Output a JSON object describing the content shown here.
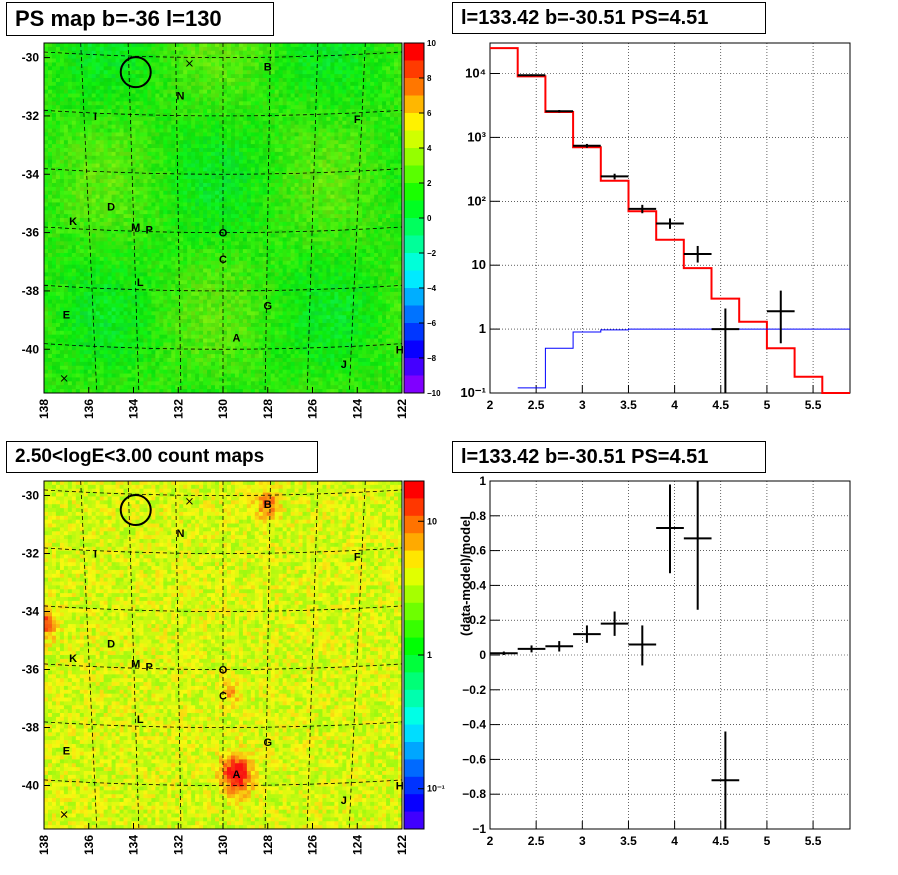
{
  "panels": {
    "map_top": {
      "title": "PS map b=-36 l=130",
      "x_ticks": [
        "138",
        "136",
        "134",
        "132",
        "130",
        "128",
        "126",
        "124",
        "122"
      ],
      "y_ticks": [
        "-30",
        "-32",
        "-34",
        "-36",
        "-38",
        "-40"
      ],
      "colorbar_ticks": [
        "10",
        "8",
        "6",
        "4",
        "2",
        "0",
        "−2",
        "−4",
        "−6",
        "−8",
        "−10"
      ],
      "source_labels": [
        {
          "t": "B",
          "l": 128.0,
          "b": -30.3
        },
        {
          "t": "N",
          "l": 131.9,
          "b": -31.3
        },
        {
          "t": "I",
          "l": 135.7,
          "b": -32.0
        },
        {
          "t": "F",
          "l": 124.0,
          "b": -32.1
        },
        {
          "t": "D",
          "l": 135.0,
          "b": -35.1
        },
        {
          "t": "K",
          "l": 136.7,
          "b": -35.6
        },
        {
          "t": "M",
          "l": 133.9,
          "b": -35.8
        },
        {
          "t": "P",
          "l": 133.3,
          "b": -35.9
        },
        {
          "t": "O",
          "l": 130.0,
          "b": -36.0
        },
        {
          "t": "C",
          "l": 130.0,
          "b": -36.9
        },
        {
          "t": "L",
          "l": 133.7,
          "b": -37.7
        },
        {
          "t": "G",
          "l": 128.0,
          "b": -38.5
        },
        {
          "t": "E",
          "l": 137.0,
          "b": -38.8
        },
        {
          "t": "A",
          "l": 129.4,
          "b": -39.6
        },
        {
          "t": "H",
          "l": 122.1,
          "b": -40.0
        },
        {
          "t": "J",
          "l": 124.6,
          "b": -40.5
        }
      ],
      "crosses": [
        {
          "l": 131.5,
          "b": -30.2
        },
        {
          "l": 137.1,
          "b": -41.0
        }
      ],
      "circle": {
        "l": 133.9,
        "b": -30.5
      }
    },
    "map_bottom": {
      "title": "2.50<logE<3.00 count maps",
      "x_ticks": [
        "138",
        "136",
        "134",
        "132",
        "130",
        "128",
        "126",
        "124",
        "122"
      ],
      "y_ticks": [
        "-30",
        "-32",
        "-34",
        "-36",
        "-38",
        "-40"
      ],
      "colorbar_ticks": [
        {
          "t": "10",
          "v": 10
        },
        {
          "t": "1",
          "v": 1
        },
        {
          "t": "10⁻¹",
          "v": 0.1
        }
      ],
      "hotspots": [
        {
          "l": 129.4,
          "b": -39.6,
          "r": 1.0
        },
        {
          "l": 128.0,
          "b": -30.3,
          "r": 0.55
        },
        {
          "l": 137.9,
          "b": -34.4,
          "r": 0.6
        },
        {
          "l": 129.7,
          "b": -36.8,
          "r": 0.35
        }
      ]
    },
    "spectrum": {
      "title": "l=133.42 b=-30.51 PS=4.51",
      "x_ticks": [
        "2",
        "2.5",
        "3",
        "3.5",
        "4",
        "4.5",
        "5",
        "5.5"
      ],
      "y_ticks": [
        {
          "t": "10⁻¹",
          "v": 0.1
        },
        {
          "t": "1",
          "v": 1
        },
        {
          "t": "10",
          "v": 10
        },
        {
          "t": "10²",
          "v": 100
        },
        {
          "t": "10³",
          "v": 1000
        },
        {
          "t": "10⁴",
          "v": 10000
        }
      ]
    },
    "residual": {
      "title": "l=133.42 b=-30.51 PS=4.51",
      "ylabel": "(data-model)/model",
      "x_ticks": [
        "2",
        "2.5",
        "3",
        "3.5",
        "4",
        "4.5",
        "5",
        "5.5"
      ],
      "y_ticks": [
        "−1",
        "−0.8",
        "−0.6",
        "−0.4",
        "−0.2",
        "0",
        "0.2",
        "0.4",
        "0.6",
        "0.8",
        "1"
      ]
    }
  },
  "chart_data": [
    {
      "type": "heatmap",
      "title": "PS map b=-36 l=130",
      "xlim": [
        138,
        122
      ],
      "ylim": [
        -41.5,
        -29.5
      ],
      "zlim": [
        -10,
        10
      ],
      "colors": {
        "high": "#ff0000",
        "mid": "#00ff00",
        "low": "#6600ff"
      }
    },
    {
      "type": "heatmap",
      "title": "2.50<logE<3.00 count maps",
      "xlim": [
        138,
        122
      ],
      "ylim": [
        -41.5,
        -29.5
      ],
      "zscale": "log"
    },
    {
      "type": "line",
      "title": "l=133.42 b=-30.51 PS=4.51",
      "xlim": [
        2,
        5.9
      ],
      "ylim": [
        0.1,
        30000
      ],
      "yscale": "log",
      "grid": true,
      "series": [
        {
          "style": "step",
          "color": "#ff0000",
          "edges": [
            2.0,
            2.3,
            2.6,
            2.9,
            3.2,
            3.5,
            3.8,
            4.1,
            4.4,
            4.7,
            5.0,
            5.3,
            5.6,
            5.9
          ],
          "values": [
            25000,
            9000,
            2500,
            700,
            210,
            70,
            25,
            9,
            3,
            1.3,
            0.5,
            0.18,
            0.06
          ]
        },
        {
          "style": "step",
          "color": "#0000ff",
          "edges": [
            2.3,
            2.6,
            2.9,
            3.2,
            3.5,
            3.8,
            4.1,
            4.4,
            4.7,
            5.0,
            5.3,
            5.6,
            5.9
          ],
          "values": [
            0.12,
            0.5,
            0.9,
            0.97,
            1.0,
            1.0,
            1.0,
            1.0,
            1.0,
            1.0,
            1.0,
            1.0
          ]
        },
        {
          "style": "errorbar",
          "color": "#000000",
          "points": [
            {
              "x": 2.45,
              "y": 9400,
              "xerr": 0.15,
              "ylo": 9100,
              "yhi": 9700
            },
            {
              "x": 2.75,
              "y": 2560,
              "xerr": 0.15,
              "ylo": 2450,
              "yhi": 2680
            },
            {
              "x": 3.05,
              "y": 740,
              "xerr": 0.15,
              "ylo": 690,
              "yhi": 790
            },
            {
              "x": 3.35,
              "y": 245,
              "xerr": 0.15,
              "ylo": 220,
              "yhi": 270
            },
            {
              "x": 3.65,
              "y": 76,
              "xerr": 0.15,
              "ylo": 65,
              "yhi": 88
            },
            {
              "x": 3.95,
              "y": 45,
              "xerr": 0.15,
              "ylo": 37,
              "yhi": 54
            },
            {
              "x": 4.25,
              "y": 15,
              "xerr": 0.15,
              "ylo": 11,
              "yhi": 20
            },
            {
              "x": 4.55,
              "y": 1.0,
              "xerr": 0.15,
              "ylo": 0.1,
              "yhi": 2.1
            },
            {
              "x": 5.15,
              "y": 1.9,
              "xerr": 0.15,
              "ylo": 0.6,
              "yhi": 4.0
            }
          ]
        }
      ]
    },
    {
      "type": "scatter",
      "title": "l=133.42 b=-30.51 PS=4.51",
      "ylabel": "(data-model)/model",
      "xlim": [
        2,
        5.9
      ],
      "ylim": [
        -1,
        1
      ],
      "grid": true,
      "points": [
        {
          "x": 2.15,
          "y": 0.01,
          "xerr": 0.15,
          "ylo": 0.0,
          "yhi": 0.02
        },
        {
          "x": 2.45,
          "y": 0.035,
          "xerr": 0.15,
          "ylo": 0.015,
          "yhi": 0.055
        },
        {
          "x": 2.75,
          "y": 0.05,
          "xerr": 0.15,
          "ylo": 0.02,
          "yhi": 0.08
        },
        {
          "x": 3.05,
          "y": 0.12,
          "xerr": 0.15,
          "ylo": 0.07,
          "yhi": 0.17
        },
        {
          "x": 3.35,
          "y": 0.18,
          "xerr": 0.15,
          "ylo": 0.11,
          "yhi": 0.25
        },
        {
          "x": 3.65,
          "y": 0.06,
          "xerr": 0.15,
          "ylo": -0.06,
          "yhi": 0.17
        },
        {
          "x": 3.95,
          "y": 0.73,
          "xerr": 0.15,
          "ylo": 0.47,
          "yhi": 0.98
        },
        {
          "x": 4.25,
          "y": 0.67,
          "xerr": 0.15,
          "ylo": 0.26,
          "yhi": 1.0
        },
        {
          "x": 4.55,
          "y": -0.72,
          "xerr": 0.15,
          "ylo": -1.0,
          "yhi": -0.44
        }
      ]
    }
  ]
}
